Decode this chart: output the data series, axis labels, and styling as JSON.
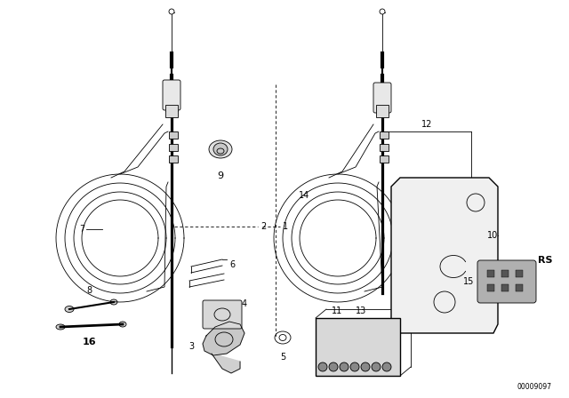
{
  "bg_color": "#ffffff",
  "line_color": "#000000",
  "fig_width": 6.4,
  "fig_height": 4.48,
  "dpi": 100,
  "watermark": "00009097"
}
